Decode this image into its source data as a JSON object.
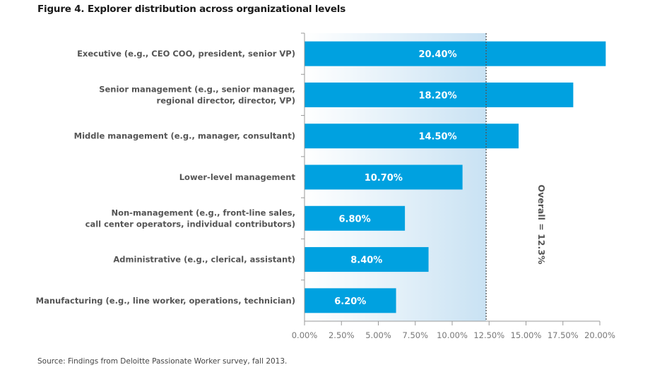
{
  "figure": {
    "title": "Figure 4. Explorer distribution across organizational levels",
    "source": "Source: Findings from Deloitte Passionate Worker survey, fall 2013."
  },
  "chart_data": {
    "type": "bar",
    "orientation": "horizontal",
    "title": "Figure 4. Explorer distribution across organizational levels",
    "xlabel": "",
    "ylabel": "",
    "categories": [
      [
        "Executive (e.g., CEO COO, president, senior VP)"
      ],
      [
        "Senior management (e.g., senior manager,",
        "regional director, director, VP)"
      ],
      [
        "Middle management (e.g., manager, consultant)"
      ],
      [
        "Lower-level management"
      ],
      [
        "Non-management (e.g., front-line sales,",
        "call center operators, individual contributors)"
      ],
      [
        "Administrative (e.g., clerical, assistant)"
      ],
      [
        "Manufacturing (e.g., line worker, operations, technician)"
      ]
    ],
    "values": [
      20.4,
      18.2,
      14.5,
      10.7,
      6.8,
      8.4,
      6.2
    ],
    "value_labels": [
      "20.40%",
      "18.20%",
      "14.50%",
      "10.70%",
      "6.80%",
      "8.40%",
      "6.20%"
    ],
    "xlim": [
      0,
      20
    ],
    "xticks": [
      0,
      2.5,
      5,
      7.5,
      10,
      12.5,
      15,
      17.5,
      20
    ],
    "xtick_labels": [
      "0.00%",
      "2.50%",
      "5.00%",
      "7.50%",
      "10.00%",
      "12.50%",
      "15.00%",
      "17.50%",
      "20.00%"
    ],
    "grid": false,
    "bar_color": "#00a1e0",
    "reference_line": {
      "value": 12.3,
      "label": "Overall = 12.3%",
      "style": "dotted",
      "shaded_region": [
        0,
        12.3
      ],
      "shade_color": "#c9e2f3"
    }
  }
}
